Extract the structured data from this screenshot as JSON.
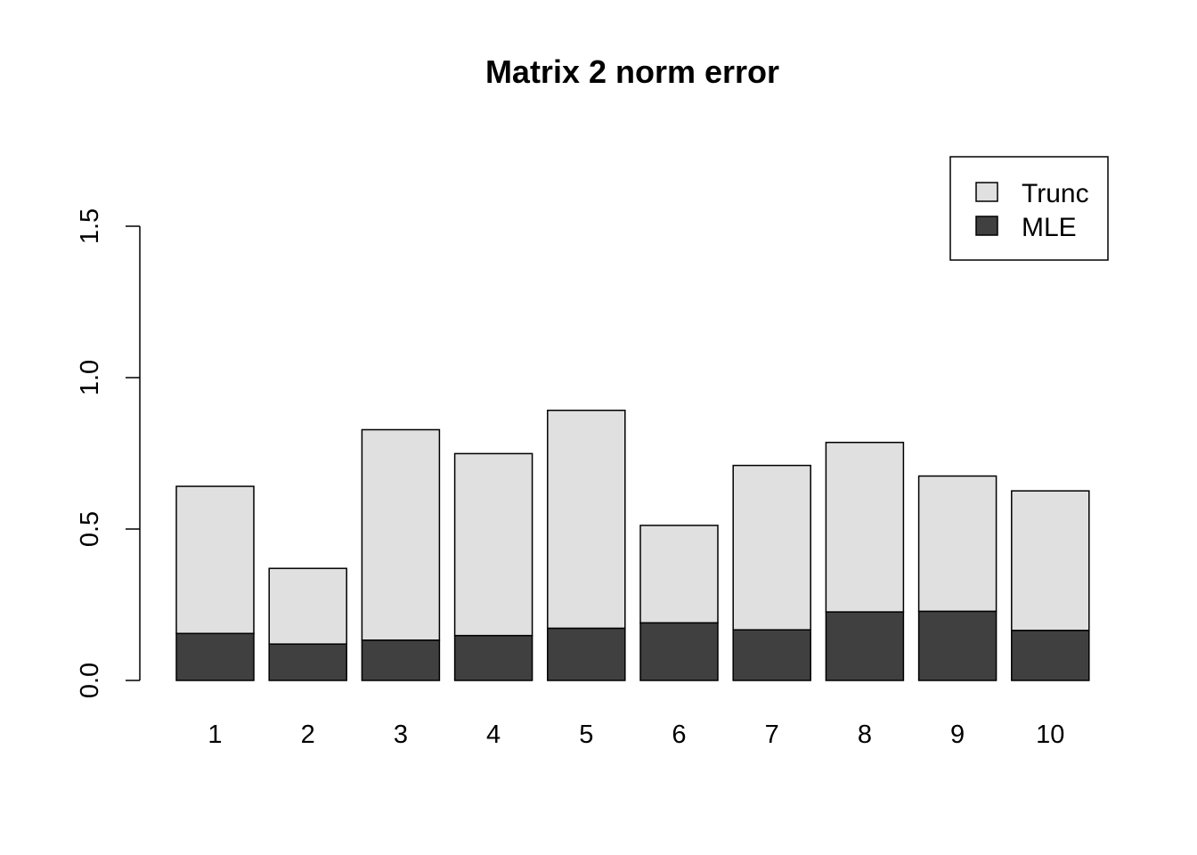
{
  "chart_data": {
    "type": "bar",
    "stacked": true,
    "title": "Matrix 2 norm error",
    "xlabel": "",
    "ylabel": "",
    "categories": [
      "1",
      "2",
      "3",
      "4",
      "5",
      "6",
      "7",
      "8",
      "9",
      "10"
    ],
    "series": [
      {
        "name": "MLE",
        "color": "#404040",
        "values": [
          0.155,
          0.12,
          0.133,
          0.148,
          0.172,
          0.19,
          0.167,
          0.226,
          0.228,
          0.165
        ]
      },
      {
        "name": "Trunc",
        "color": "#e0e0e0",
        "values": [
          0.486,
          0.25,
          0.695,
          0.601,
          0.72,
          0.322,
          0.543,
          0.56,
          0.447,
          0.461
        ]
      }
    ],
    "ylim": [
      0,
      1.5
    ],
    "yticks": [
      "0.0",
      "0.5",
      "1.0",
      "1.5"
    ],
    "legend": {
      "position": "top-right",
      "entries": [
        "Trunc",
        "MLE"
      ]
    },
    "grid": false
  }
}
